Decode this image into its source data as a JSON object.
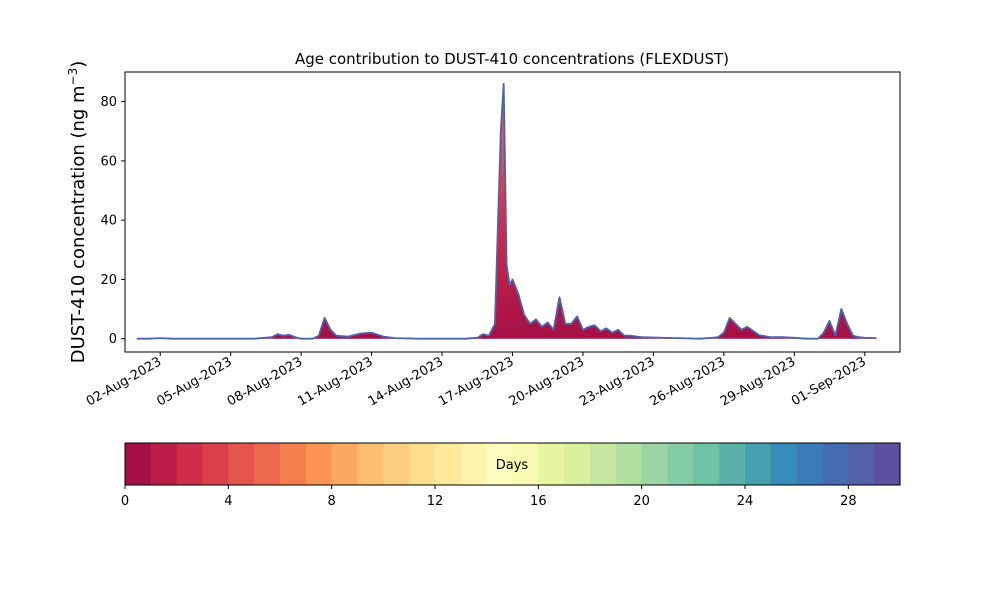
{
  "chart_data": {
    "type": "area",
    "title": "Age contribution to DUST-410 concentrations (FLEXDUST)",
    "xlabel": "",
    "ylabel": "DUST-410 concentration (ng m",
    "ylabel_sup": "−3",
    "ylabel_close": ")",
    "xlim": [
      "2023-07-31T12:00",
      "2023-09-02T12:00"
    ],
    "ylim": [
      -4.5,
      90
    ],
    "yticks": [
      0,
      20,
      40,
      60,
      80
    ],
    "xticks": [
      "2023-08-02",
      "2023-08-05",
      "2023-08-08",
      "2023-08-11",
      "2023-08-14",
      "2023-08-17",
      "2023-08-20",
      "2023-08-23",
      "2023-08-26",
      "2023-08-29",
      "2023-09-01"
    ],
    "xtick_labels": [
      "02-Aug-2023",
      "05-Aug-2023",
      "08-Aug-2023",
      "11-Aug-2023",
      "14-Aug-2023",
      "17-Aug-2023",
      "20-Aug-2023",
      "23-Aug-2023",
      "26-Aug-2023",
      "29-Aug-2023",
      "01-Sep-2023"
    ],
    "series_description": "stacked contributions by age bin (0-30 days), outline = total",
    "total": {
      "x": [
        "2023-08-01T00:00",
        "2023-08-01T12:00",
        "2023-08-02T00:00",
        "2023-08-02T12:00",
        "2023-08-03T00:00",
        "2023-08-04T00:00",
        "2023-08-05T00:00",
        "2023-08-06T00:00",
        "2023-08-06T18:00",
        "2023-08-07T00:00",
        "2023-08-07T06:00",
        "2023-08-07T12:00",
        "2023-08-07T18:00",
        "2023-08-08T00:00",
        "2023-08-08T12:00",
        "2023-08-08T18:00",
        "2023-08-09T00:00",
        "2023-08-09T06:00",
        "2023-08-09T12:00",
        "2023-08-10T00:00",
        "2023-08-10T12:00",
        "2023-08-11T00:00",
        "2023-08-11T12:00",
        "2023-08-12T00:00",
        "2023-08-13T00:00",
        "2023-08-14T00:00",
        "2023-08-15T00:00",
        "2023-08-15T12:00",
        "2023-08-15T18:00",
        "2023-08-16T00:00",
        "2023-08-16T06:00",
        "2023-08-16T12:00",
        "2023-08-16T15:00",
        "2023-08-16T18:00",
        "2023-08-16T21:00",
        "2023-08-17T00:00",
        "2023-08-17T06:00",
        "2023-08-17T12:00",
        "2023-08-17T18:00",
        "2023-08-18T00:00",
        "2023-08-18T06:00",
        "2023-08-18T12:00",
        "2023-08-18T18:00",
        "2023-08-19T00:00",
        "2023-08-19T06:00",
        "2023-08-19T12:00",
        "2023-08-19T18:00",
        "2023-08-20T00:00",
        "2023-08-20T06:00",
        "2023-08-20T12:00",
        "2023-08-20T18:00",
        "2023-08-21T00:00",
        "2023-08-21T06:00",
        "2023-08-21T12:00",
        "2023-08-21T18:00",
        "2023-08-22T00:00",
        "2023-08-22T12:00",
        "2023-08-23T00:00",
        "2023-08-24T00:00",
        "2023-08-25T00:00",
        "2023-08-25T12:00",
        "2023-08-25T18:00",
        "2023-08-26T00:00",
        "2023-08-26T06:00",
        "2023-08-26T12:00",
        "2023-08-26T18:00",
        "2023-08-27T00:00",
        "2023-08-27T12:00",
        "2023-08-28T00:00",
        "2023-08-28T12:00",
        "2023-08-29T00:00",
        "2023-08-29T12:00",
        "2023-08-30T00:00",
        "2023-08-30T06:00",
        "2023-08-30T12:00",
        "2023-08-30T18:00",
        "2023-08-31T00:00",
        "2023-08-31T06:00",
        "2023-08-31T12:00",
        "2023-08-31T18:00",
        "2023-09-01T00:00",
        "2023-09-01T12:00"
      ],
      "y": [
        0,
        0,
        0.2,
        0,
        0,
        0,
        0,
        0,
        0.5,
        1.5,
        1,
        1.3,
        0.5,
        0,
        0,
        1,
        7,
        3,
        1,
        0.7,
        1.7,
        2,
        0.7,
        0.2,
        0,
        0,
        0,
        0.3,
        1.5,
        1,
        5,
        70,
        86,
        25,
        18,
        20,
        15,
        8,
        5,
        6.5,
        4,
        5.5,
        3,
        14,
        5,
        5,
        7.5,
        3,
        4,
        4.5,
        2.5,
        3.5,
        2,
        3,
        1,
        1,
        0.5,
        0.4,
        0.2,
        0,
        0.3,
        0.5,
        2,
        7,
        5,
        3,
        4,
        1.2,
        0.5,
        0.5,
        0.3,
        0,
        0,
        2,
        6,
        1,
        10,
        5,
        1,
        0.5,
        0.3,
        0.2
      ]
    }
  },
  "colorbar": {
    "label": "Days",
    "range": [
      0,
      30
    ],
    "ticks": [
      0,
      4,
      8,
      12,
      16,
      20,
      24,
      28
    ],
    "colors": [
      "#a50f45",
      "#ba1e47",
      "#ce2e4a",
      "#db404a",
      "#e5554b",
      "#ee6a4f",
      "#f57d4e",
      "#f99455",
      "#fcaa62",
      "#fdbe6f",
      "#fdce7d",
      "#fedd8d",
      "#fee99a",
      "#fef4ad",
      "#fefdbd",
      "#f6fbb1",
      "#e8f5a0",
      "#daef9b",
      "#c6e79f",
      "#b0de9f",
      "#9bd5a3",
      "#84cca4",
      "#6fc3a5",
      "#5ab1a9",
      "#45a0b0",
      "#358cbd",
      "#3a7cb9",
      "#466db2",
      "#5261aa",
      "#5e4fa2"
    ]
  }
}
